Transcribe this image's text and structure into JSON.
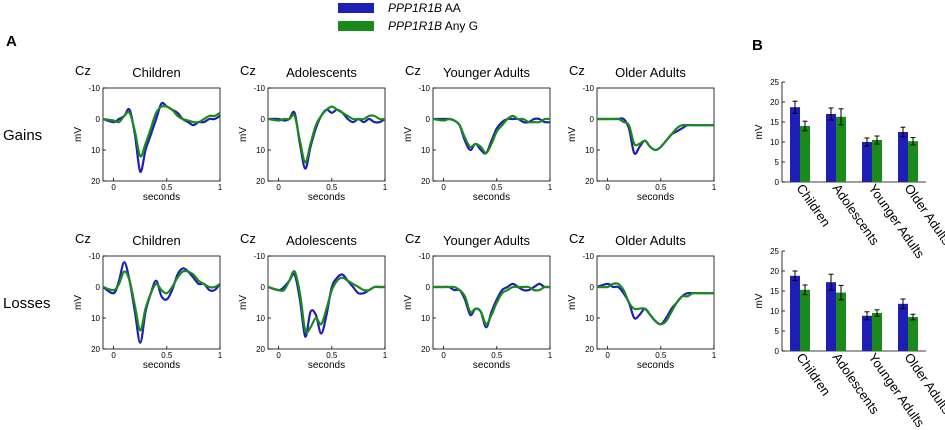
{
  "legend": [
    {
      "gene": "PPP1R1B",
      "suffix": " AA",
      "color": "#1f1fb5"
    },
    {
      "gene": "PPP1R1B",
      "suffix": " Any G",
      "color": "#1a8a1a"
    }
  ],
  "panel_labels": {
    "a": "A",
    "b": "B"
  },
  "row_labels": {
    "gains": "Gains",
    "losses": "Losses"
  },
  "channel_label": "Cz",
  "groups": [
    "Children",
    "Adolescents",
    "Younger Adults",
    "Older Adults"
  ],
  "colors": {
    "aa": "#1f1fb5",
    "anyg": "#1a8a1a"
  },
  "chart_data": [
    {
      "type": "line",
      "title": "Children",
      "row": "Gains",
      "channel": "Cz",
      "xlabel": "seconds",
      "ylabel": "mV",
      "xlim": [
        -0.1,
        1.0
      ],
      "ylim": [
        -10,
        20
      ],
      "yinverted": true,
      "xticks": [
        0,
        0.5,
        1
      ],
      "xtick_labels": [
        "0",
        "0.5",
        "1"
      ],
      "yticks": [
        -10,
        0,
        10,
        20
      ],
      "ytick_labels": [
        "-10",
        "0",
        "10",
        "20"
      ],
      "x": [
        -0.1,
        0,
        0.05,
        0.1,
        0.15,
        0.2,
        0.25,
        0.3,
        0.35,
        0.4,
        0.45,
        0.5,
        0.55,
        0.6,
        0.65,
        0.7,
        0.75,
        0.8,
        0.85,
        0.9,
        0.95,
        1.0
      ],
      "series": [
        {
          "name": "PPP1R1B AA",
          "values": [
            0,
            1,
            0,
            -1,
            -3,
            5,
            17,
            10,
            5,
            0,
            -5,
            -4,
            -3,
            -2,
            0,
            1,
            2,
            1,
            1,
            0,
            0,
            -1
          ]
        },
        {
          "name": "PPP1R1B Any G",
          "values": [
            0,
            0.5,
            1,
            -1,
            -2,
            4,
            12,
            8,
            3,
            -2,
            -4,
            -4,
            -3,
            -1,
            0,
            0.5,
            1,
            1,
            0,
            -1,
            -1,
            -2
          ]
        }
      ]
    },
    {
      "type": "line",
      "title": "Adolescents",
      "row": "Gains",
      "channel": "Cz",
      "xlabel": "seconds",
      "ylabel": "mV",
      "xlim": [
        -0.1,
        1.0
      ],
      "ylim": [
        -10,
        20
      ],
      "yinverted": true,
      "xticks": [
        0,
        0.5,
        1
      ],
      "xtick_labels": [
        "0",
        "0.5",
        "1"
      ],
      "yticks": [
        -10,
        0,
        10,
        20
      ],
      "ytick_labels": [
        "-10",
        "0",
        "10",
        "20"
      ],
      "x": [
        -0.1,
        0,
        0.05,
        0.1,
        0.15,
        0.2,
        0.25,
        0.3,
        0.35,
        0.4,
        0.45,
        0.5,
        0.55,
        0.6,
        0.65,
        0.7,
        0.75,
        0.8,
        0.85,
        0.9,
        0.95,
        1.0
      ],
      "series": [
        {
          "name": "PPP1R1B AA",
          "values": [
            0,
            0,
            0.5,
            0,
            -2,
            8,
            16,
            9,
            3,
            -1,
            -3,
            -2,
            -3,
            -2,
            0,
            1,
            0,
            1,
            0,
            1,
            1,
            0
          ]
        },
        {
          "name": "PPP1R1B Any G",
          "values": [
            0,
            0.5,
            0,
            0,
            -1,
            7,
            14,
            8,
            2,
            -1,
            -3,
            -4,
            -3,
            -2,
            -1,
            0,
            0,
            0,
            -1,
            -1,
            0,
            0
          ]
        }
      ]
    },
    {
      "type": "line",
      "title": "Younger Adults",
      "row": "Gains",
      "channel": "Cz",
      "xlabel": "seconds",
      "ylabel": "mV",
      "xlim": [
        -0.1,
        1.0
      ],
      "ylim": [
        -10,
        20
      ],
      "yinverted": true,
      "xticks": [
        0,
        0.5,
        1
      ],
      "xtick_labels": [
        "0",
        "0.5",
        "1"
      ],
      "yticks": [
        -10,
        0,
        10,
        20
      ],
      "ytick_labels": [
        "-10",
        "0",
        "10",
        "20"
      ],
      "x": [
        -0.1,
        0,
        0.05,
        0.1,
        0.15,
        0.2,
        0.25,
        0.3,
        0.35,
        0.4,
        0.45,
        0.5,
        0.55,
        0.6,
        0.65,
        0.7,
        0.75,
        0.8,
        0.85,
        0.9,
        0.95,
        1.0
      ],
      "series": [
        {
          "name": "PPP1R1B AA",
          "values": [
            0,
            0,
            0,
            0.5,
            2,
            7,
            10,
            8,
            10,
            11,
            7,
            3,
            1,
            0,
            0,
            0,
            1,
            1,
            0,
            0,
            1,
            1
          ]
        },
        {
          "name": "PPP1R1B Any G",
          "values": [
            0,
            0.5,
            0,
            0.5,
            2,
            6,
            9,
            8,
            9,
            11,
            8,
            4,
            2,
            0,
            -1,
            0,
            0,
            1,
            1,
            1,
            0,
            0
          ]
        }
      ]
    },
    {
      "type": "line",
      "title": "Older Adults",
      "row": "Gains",
      "channel": "Cz",
      "xlabel": "seconds",
      "ylabel": "mV",
      "xlim": [
        -0.1,
        1.0
      ],
      "ylim": [
        -10,
        20
      ],
      "yinverted": true,
      "xticks": [
        0,
        0.5,
        1
      ],
      "xtick_labels": [
        "0",
        "0.5",
        "1"
      ],
      "yticks": [
        -10,
        0,
        10,
        20
      ],
      "ytick_labels": [
        "-10",
        "0",
        "10",
        "20"
      ],
      "x": [
        -0.1,
        0,
        0.05,
        0.1,
        0.15,
        0.2,
        0.25,
        0.3,
        0.35,
        0.4,
        0.45,
        0.5,
        0.55,
        0.6,
        0.65,
        0.7,
        0.75,
        0.8,
        0.85,
        0.9,
        0.95,
        1.0
      ],
      "series": [
        {
          "name": "PPP1R1B AA",
          "values": [
            0,
            0,
            0,
            0,
            0,
            3,
            11,
            9,
            7,
            9,
            10,
            9,
            7,
            5,
            4,
            3,
            2,
            2,
            2,
            2,
            2,
            2
          ]
        },
        {
          "name": "PPP1R1B Any G",
          "values": [
            0,
            0,
            0,
            0,
            1,
            2,
            8,
            8,
            7,
            9,
            10,
            9,
            7,
            5,
            3,
            2,
            2,
            2,
            2,
            2,
            2,
            2
          ]
        }
      ]
    },
    {
      "type": "line",
      "title": "Children",
      "row": "Losses",
      "channel": "Cz",
      "xlabel": "seconds",
      "ylabel": "mV",
      "xlim": [
        -0.1,
        1.0
      ],
      "ylim": [
        -10,
        20
      ],
      "yinverted": true,
      "xticks": [
        0,
        0.5,
        1
      ],
      "xtick_labels": [
        "0",
        "0.5",
        "1"
      ],
      "yticks": [
        -10,
        0,
        10,
        20
      ],
      "ytick_labels": [
        "-10",
        "0",
        "10",
        "20"
      ],
      "x": [
        -0.1,
        0,
        0.05,
        0.1,
        0.15,
        0.2,
        0.25,
        0.3,
        0.35,
        0.4,
        0.45,
        0.5,
        0.55,
        0.6,
        0.65,
        0.7,
        0.75,
        0.8,
        0.85,
        0.9,
        0.95,
        1.0
      ],
      "series": [
        {
          "name": "PPP1R1B AA",
          "values": [
            0,
            2,
            -2,
            -8,
            -2,
            8,
            18,
            8,
            2,
            -2,
            3,
            4,
            1,
            -4,
            -6,
            -5,
            -3,
            -1,
            -1,
            1,
            1,
            -1
          ]
        },
        {
          "name": "PPP1R1B Any G",
          "values": [
            0,
            1,
            -1,
            -5,
            -2,
            6,
            14,
            7,
            2,
            -1,
            1,
            2,
            0,
            -3,
            -5,
            -5,
            -4,
            -2,
            -1,
            0,
            0,
            -1
          ]
        }
      ]
    },
    {
      "type": "line",
      "title": "Adolescents",
      "row": "Losses",
      "channel": "Cz",
      "xlabel": "seconds",
      "ylabel": "mV",
      "xlim": [
        -0.1,
        1.0
      ],
      "ylim": [
        -10,
        20
      ],
      "yinverted": true,
      "xticks": [
        0,
        0.5,
        1
      ],
      "xtick_labels": [
        "0",
        "0.5",
        "1"
      ],
      "yticks": [
        -10,
        0,
        10,
        20
      ],
      "ytick_labels": [
        "-10",
        "0",
        "10",
        "20"
      ],
      "x": [
        -0.1,
        0,
        0.05,
        0.1,
        0.15,
        0.2,
        0.25,
        0.3,
        0.35,
        0.4,
        0.45,
        0.5,
        0.55,
        0.6,
        0.65,
        0.7,
        0.75,
        0.8,
        0.85,
        0.9,
        0.95,
        1.0
      ],
      "series": [
        {
          "name": "PPP1R1B AA",
          "values": [
            0,
            1,
            0,
            -2,
            -4,
            4,
            16,
            8,
            9,
            15,
            9,
            0,
            -3,
            -4,
            -2,
            0,
            2,
            2,
            1,
            0,
            0,
            0
          ]
        },
        {
          "name": "PPP1R1B Any G",
          "values": [
            0,
            1,
            1,
            -2,
            -5,
            2,
            14,
            13,
            10,
            12,
            7,
            1,
            -2,
            -3,
            -2,
            -1,
            0,
            1,
            1,
            0,
            0,
            0
          ]
        }
      ]
    },
    {
      "type": "line",
      "title": "Younger Adults",
      "row": "Losses",
      "channel": "Cz",
      "xlabel": "seconds",
      "ylabel": "mV",
      "xlim": [
        -0.1,
        1.0
      ],
      "ylim": [
        -10,
        20
      ],
      "yinverted": true,
      "xticks": [
        0,
        0.5,
        1
      ],
      "xtick_labels": [
        "0",
        "0.5",
        "1"
      ],
      "yticks": [
        -10,
        0,
        10,
        20
      ],
      "ytick_labels": [
        "-10",
        "0",
        "10",
        "20"
      ],
      "x": [
        -0.1,
        0,
        0.05,
        0.1,
        0.15,
        0.2,
        0.25,
        0.3,
        0.35,
        0.4,
        0.45,
        0.5,
        0.55,
        0.6,
        0.65,
        0.7,
        0.75,
        0.8,
        0.85,
        0.9,
        0.95,
        1.0
      ],
      "series": [
        {
          "name": "PPP1R1B AA",
          "values": [
            0,
            0,
            0,
            1,
            1,
            4,
            9,
            7,
            8,
            13,
            8,
            4,
            1,
            0,
            -1,
            0,
            1,
            1,
            0,
            -1,
            0,
            0
          ]
        },
        {
          "name": "PPP1R1B Any G",
          "values": [
            0,
            0,
            0,
            0,
            1,
            3,
            8,
            7,
            8,
            12,
            9,
            5,
            2,
            1,
            0,
            0,
            0,
            0,
            1,
            1,
            0,
            0
          ]
        }
      ]
    },
    {
      "type": "line",
      "title": "Older Adults",
      "row": "Losses",
      "channel": "Cz",
      "xlabel": "seconds",
      "ylabel": "mV",
      "xlim": [
        -0.1,
        1.0
      ],
      "ylim": [
        -10,
        20
      ],
      "yinverted": true,
      "xticks": [
        0,
        0.5,
        1
      ],
      "xtick_labels": [
        "0",
        "0.5",
        "1"
      ],
      "yticks": [
        -10,
        0,
        10,
        20
      ],
      "ytick_labels": [
        "-10",
        "0",
        "10",
        "20"
      ],
      "x": [
        -0.1,
        0,
        0.05,
        0.1,
        0.15,
        0.2,
        0.25,
        0.3,
        0.35,
        0.4,
        0.45,
        0.5,
        0.55,
        0.6,
        0.65,
        0.7,
        0.75,
        0.8,
        0.85,
        0.9,
        0.95,
        1.0
      ],
      "series": [
        {
          "name": "PPP1R1B AA",
          "values": [
            0,
            -1,
            0,
            0,
            2,
            5,
            10,
            9,
            7,
            9,
            11,
            12,
            10,
            7,
            5,
            3,
            2,
            2,
            2,
            2,
            2,
            2
          ]
        },
        {
          "name": "PPP1R1B Any G",
          "values": [
            0,
            0,
            -1,
            -1,
            1,
            5,
            7,
            7,
            7,
            9,
            11,
            12,
            11,
            8,
            5,
            3,
            3,
            2,
            2,
            2,
            2,
            2
          ]
        }
      ]
    },
    {
      "type": "bar",
      "row": "Gains",
      "ylabel": "mV",
      "ylim": [
        0,
        25
      ],
      "yticks": [
        0,
        5,
        10,
        15,
        20,
        25
      ],
      "categories": [
        "Children",
        "Adolescents",
        "Younger Adults",
        "Older Adults"
      ],
      "series": [
        {
          "name": "PPP1R1B AA",
          "values": [
            18.7,
            17.0,
            10.0,
            12.5
          ],
          "errors": [
            1.5,
            1.5,
            1.0,
            1.2
          ]
        },
        {
          "name": "PPP1R1B Any G",
          "values": [
            14.0,
            16.3,
            10.5,
            10.2
          ],
          "errors": [
            1.2,
            2.0,
            1.0,
            0.9
          ]
        }
      ]
    },
    {
      "type": "bar",
      "row": "Losses",
      "ylabel": "mV",
      "ylim": [
        0,
        25
      ],
      "yticks": [
        0,
        5,
        10,
        15,
        20,
        25
      ],
      "categories": [
        "Children",
        "Adolescents",
        "Younger Adults",
        "Older Adults"
      ],
      "series": [
        {
          "name": "PPP1R1B AA",
          "values": [
            18.8,
            17.2,
            8.8,
            11.8
          ],
          "errors": [
            1.2,
            2.0,
            1.0,
            1.2
          ]
        },
        {
          "name": "PPP1R1B Any G",
          "values": [
            15.3,
            14.6,
            9.5,
            8.5
          ],
          "errors": [
            1.2,
            1.8,
            0.8,
            0.7
          ]
        }
      ]
    }
  ]
}
